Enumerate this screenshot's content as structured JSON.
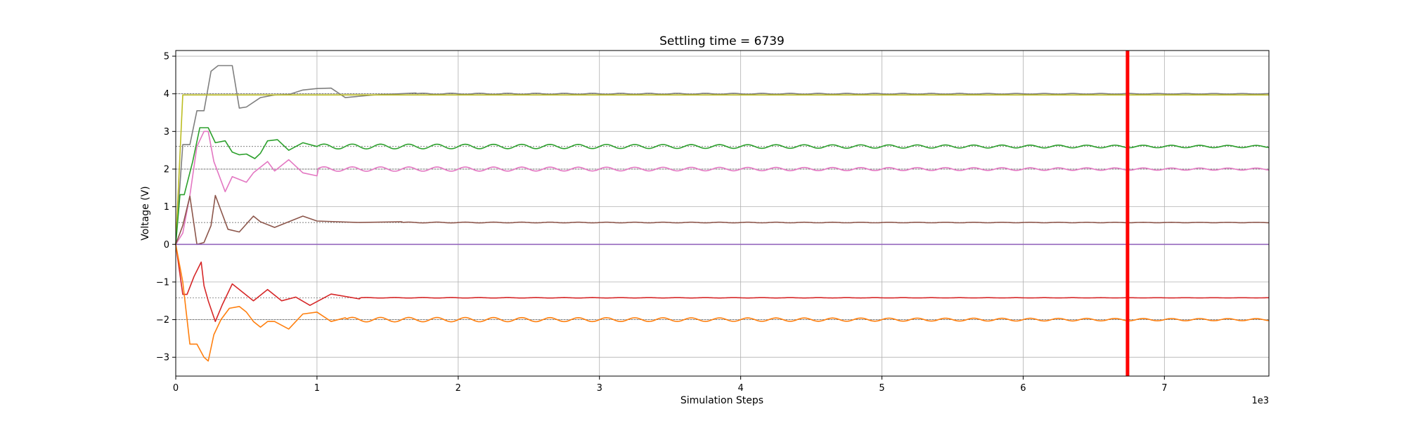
{
  "chart_data": {
    "type": "line",
    "title": "Settling time = 6739",
    "xlabel": "Simulation Steps",
    "ylabel": "Voltage (V)",
    "x_offset_label": "1e3",
    "xlim": [
      0,
      7740
    ],
    "ylim": [
      -3.5,
      5.15
    ],
    "x_ticks": [
      0,
      1000,
      2000,
      3000,
      4000,
      5000,
      6000,
      7000
    ],
    "x_tick_labels": [
      "0",
      "1",
      "2",
      "3",
      "4",
      "5",
      "6",
      "7"
    ],
    "y_ticks": [
      -3,
      -2,
      -1,
      0,
      1,
      2,
      3,
      4,
      5
    ],
    "y_tick_labels": [
      "−3",
      "−2",
      "−1",
      "0",
      "1",
      "2",
      "3",
      "4",
      "5"
    ],
    "grid": true,
    "settling_line": {
      "x": 6739,
      "color": "#ff0000"
    },
    "series": [
      {
        "color": "#7f7f7f",
        "target": 4.0,
        "x": [
          0,
          50,
          100,
          150,
          200,
          250,
          300,
          400,
          450,
          500,
          600,
          700,
          800,
          900,
          1000,
          1100,
          1200,
          1400,
          1700,
          7740
        ],
        "y": [
          0,
          2.65,
          2.65,
          3.55,
          3.55,
          4.6,
          4.75,
          4.75,
          3.62,
          3.65,
          3.9,
          3.97,
          3.98,
          4.1,
          4.14,
          4.15,
          3.9,
          3.97,
          4.02,
          4.0
        ]
      },
      {
        "color": "#bcbd22",
        "target": 4.0,
        "x": [
          0,
          50,
          60,
          7740
        ],
        "y": [
          0,
          3.97,
          3.97,
          3.97
        ]
      },
      {
        "color": "#2ca02c",
        "target": 2.6,
        "x": [
          0,
          30,
          60,
          120,
          170,
          230,
          280,
          350,
          400,
          450,
          500,
          560,
          600,
          650,
          720,
          800,
          900,
          1000,
          7740
        ],
        "y": [
          0,
          1.32,
          1.32,
          2.2,
          3.1,
          3.1,
          2.7,
          2.75,
          2.45,
          2.38,
          2.4,
          2.28,
          2.42,
          2.75,
          2.78,
          2.5,
          2.7,
          2.6,
          2.6
        ]
      },
      {
        "color": "#e377c2",
        "target": 2.0,
        "x": [
          0,
          50,
          100,
          150,
          200,
          230,
          270,
          320,
          350,
          400,
          500,
          550,
          650,
          700,
          800,
          900,
          1000,
          7740
        ],
        "y": [
          0,
          0.3,
          1.3,
          2.6,
          3.0,
          3.0,
          2.2,
          1.7,
          1.4,
          1.8,
          1.65,
          1.9,
          2.2,
          1.95,
          2.25,
          1.9,
          1.82,
          2.0
        ]
      },
      {
        "color": "#8c564b",
        "target": 0.58,
        "x": [
          0,
          50,
          100,
          150,
          200,
          250,
          280,
          320,
          370,
          450,
          550,
          600,
          700,
          900,
          1000,
          1300,
          1600,
          7740
        ],
        "y": [
          0,
          0.5,
          1.28,
          0.0,
          0.05,
          0.5,
          1.3,
          0.9,
          0.4,
          0.33,
          0.75,
          0.6,
          0.45,
          0.75,
          0.62,
          0.58,
          0.6,
          0.58
        ]
      },
      {
        "color": "#9467bd",
        "target": 0.0,
        "x": [
          0,
          7740
        ],
        "y": [
          0,
          0
        ]
      },
      {
        "color": "#d62728",
        "target": -1.42,
        "x": [
          0,
          50,
          80,
          130,
          180,
          200,
          230,
          280,
          330,
          400,
          450,
          550,
          650,
          750,
          850,
          950,
          1100,
          1300,
          7740
        ],
        "y": [
          0,
          -1.33,
          -1.33,
          -0.85,
          -0.47,
          -1.1,
          -1.5,
          -2.05,
          -1.6,
          -1.05,
          -1.2,
          -1.5,
          -1.2,
          -1.5,
          -1.4,
          -1.62,
          -1.32,
          -1.45,
          -1.42
        ]
      },
      {
        "color": "#ff7f0e",
        "target": -2.0,
        "x": [
          0,
          50,
          100,
          150,
          200,
          230,
          270,
          320,
          380,
          450,
          500,
          550,
          600,
          650,
          700,
          800,
          900,
          1000,
          1100,
          1200,
          7740
        ],
        "y": [
          0,
          -1.0,
          -2.65,
          -2.65,
          -3.0,
          -3.1,
          -2.4,
          -2.0,
          -1.7,
          -1.65,
          -1.8,
          -2.05,
          -2.2,
          -2.05,
          -2.05,
          -2.25,
          -1.85,
          -1.8,
          -2.05,
          -1.95,
          -2.0
        ]
      }
    ]
  }
}
